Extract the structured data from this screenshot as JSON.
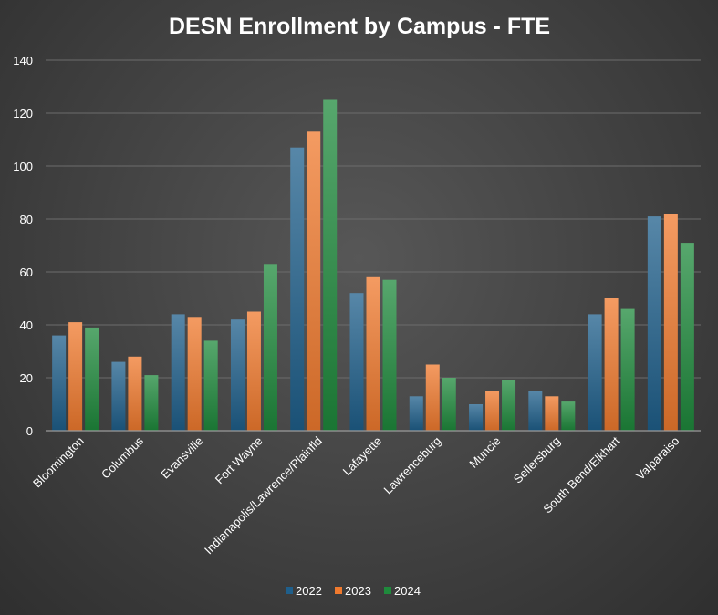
{
  "chart_data": {
    "type": "bar",
    "title": "DESN Enrollment by Campus - FTE",
    "xlabel": "",
    "ylabel": "",
    "ylim": [
      0,
      140
    ],
    "yticks": [
      0,
      20,
      40,
      60,
      80,
      100,
      120,
      140
    ],
    "grid": true,
    "legend_position": "bottom",
    "categories": [
      "Bloomington",
      "Columbus",
      "Evansville",
      "Fort Wayne",
      "Indianapolis/Lawrence/Plainfld",
      "Lafayette",
      "Lawrenceburg",
      "Muncie",
      "Sellersburg",
      "South Bend/Elkhart",
      "Valparaiso"
    ],
    "series": [
      {
        "name": "2022",
        "color": "#1f5f8b",
        "values": [
          36,
          26,
          44,
          42,
          107,
          52,
          13,
          10,
          15,
          44,
          81
        ]
      },
      {
        "name": "2023",
        "color": "#f07a2e",
        "values": [
          41,
          28,
          43,
          45,
          113,
          58,
          25,
          15,
          13,
          50,
          82
        ]
      },
      {
        "name": "2024",
        "color": "#1f8a3c",
        "values": [
          39,
          21,
          34,
          63,
          125,
          57,
          20,
          19,
          11,
          46,
          71
        ]
      }
    ]
  }
}
